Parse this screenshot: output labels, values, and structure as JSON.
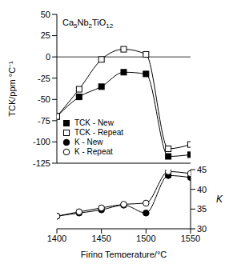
{
  "chart_data": [
    {
      "type": "line",
      "title": "Ca5Nb2TiO12",
      "ylabel": "TCK/ppm °C⁻¹",
      "x": [
        1400,
        1425,
        1450,
        1475,
        1500,
        1525,
        1550
      ],
      "xlim": [
        1400,
        1550
      ],
      "xticks": [
        1400,
        1450,
        1500,
        1550
      ],
      "ylim": [
        -125,
        50
      ],
      "yticks": [
        -125,
        -100,
        -75,
        -50,
        -25,
        0,
        25,
        50
      ],
      "reference_y": 0,
      "tick_labels": "y",
      "legend": "lower left",
      "series": [
        {
          "name": "TCK - New",
          "color": "#000000",
          "marker": "square",
          "values": [
            -70,
            -47,
            -35,
            -18,
            -20,
            -117,
            -115
          ]
        },
        {
          "name": "TCK - Repeat",
          "color": "#000000",
          "marker": "square-open",
          "values": [
            -70,
            -38,
            -3,
            9,
            3,
            -108,
            -103
          ]
        }
      ]
    },
    {
      "type": "line",
      "xlabel": "Firing Temperature/°C",
      "y2label": "K",
      "x": [
        1400,
        1425,
        1450,
        1475,
        1500,
        1525,
        1550
      ],
      "xlim": [
        1400,
        1550
      ],
      "xticks": [
        1400,
        1450,
        1500,
        1550
      ],
      "y2lim": [
        30,
        45
      ],
      "y2ticks": [
        30,
        35,
        40,
        45
      ],
      "series": [
        {
          "name": "K - New",
          "color": "#000000",
          "marker": "circle",
          "axis": "y2",
          "values": [
            33.2,
            34,
            34.8,
            36,
            34,
            43.5,
            43
          ]
        },
        {
          "name": "K - Repeat",
          "color": "#000000",
          "marker": "circle-open",
          "axis": "y2",
          "values": [
            33.2,
            34.3,
            35.3,
            36.2,
            36.5,
            44.5,
            44
          ]
        }
      ]
    }
  ]
}
